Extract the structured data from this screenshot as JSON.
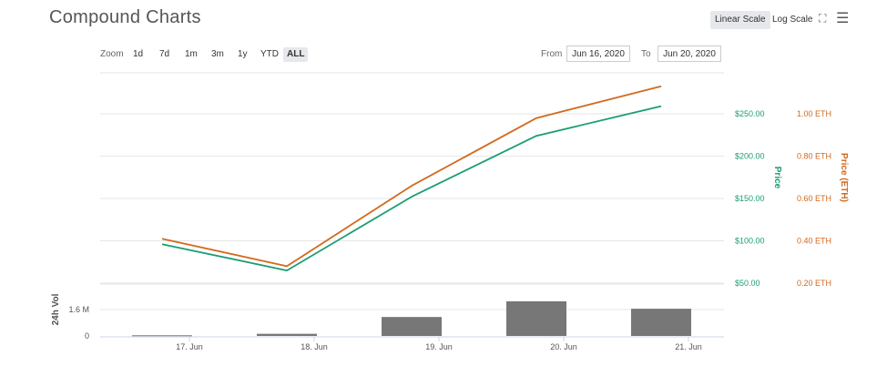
{
  "header": {
    "title": "Compound Charts",
    "linear_scale_label": "Linear Scale",
    "log_scale_label": "Log Scale"
  },
  "zoom": {
    "label": "Zoom",
    "options": [
      "1d",
      "7d",
      "1m",
      "3m",
      "1y",
      "YTD",
      "ALL"
    ],
    "active": "ALL"
  },
  "range": {
    "from_label": "From",
    "from_value": "Jun 16, 2020",
    "to_label": "To",
    "to_value": "Jun 20, 2020"
  },
  "chart_data": {
    "type": "line",
    "categories": [
      "17. Jun",
      "18. Jun",
      "19. Jun",
      "20. Jun",
      "21. Jun"
    ],
    "x_ticks": [
      "17. Jun",
      "18. Jun",
      "19. Jun",
      "20. Jun",
      "21. Jun"
    ],
    "series": [
      {
        "name": "Price",
        "axis": "usd",
        "color": "#1a9e73",
        "values": [
          96,
          65,
          152,
          224,
          259
        ]
      },
      {
        "name": "Price (ETH)",
        "axis": "eth",
        "color": "#d2691e",
        "values": [
          0.41,
          0.28,
          0.66,
          0.98,
          1.13
        ]
      }
    ],
    "volume": {
      "name": "24h Vol",
      "color": "#777777",
      "values": [
        0.04,
        0.13,
        1.15,
        2.1,
        1.65
      ]
    },
    "y_axis_usd": {
      "label": "Price",
      "ticks": [
        "$50.00",
        "$100.00",
        "$150.00",
        "$200.00",
        "$250.00"
      ],
      "tick_values": [
        50,
        100,
        150,
        200,
        250
      ],
      "color": "#1a9e73"
    },
    "y_axis_eth": {
      "label": "Price (ETH)",
      "ticks": [
        "0.20 ETH",
        "0.40 ETH",
        "0.60 ETH",
        "0.80 ETH",
        "1.00 ETH"
      ],
      "tick_values": [
        0.2,
        0.4,
        0.6,
        0.8,
        1.0
      ],
      "color": "#d2691e"
    },
    "y_axis_vol": {
      "label": "24h Vol",
      "ticks": [
        "0",
        "1.6 M"
      ],
      "tick_values": [
        0,
        1.6
      ]
    },
    "grid": true
  }
}
